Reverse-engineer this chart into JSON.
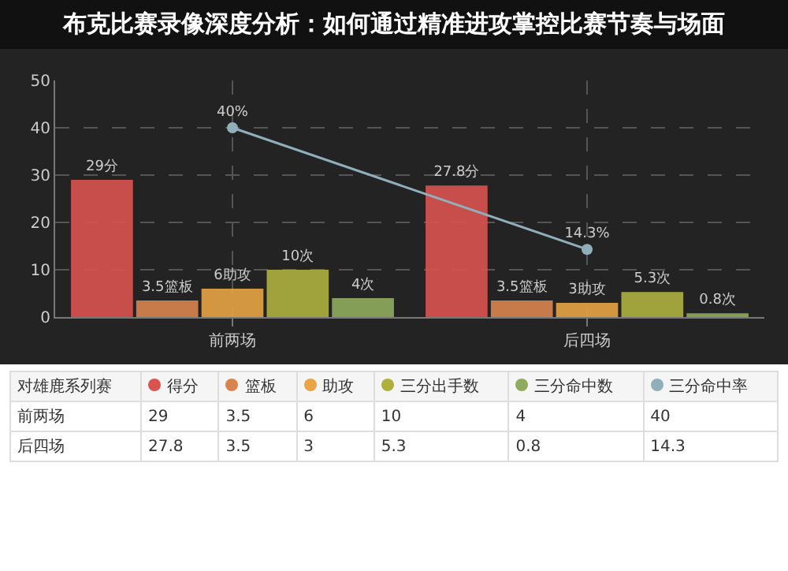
{
  "chart_data": [
    {
      "type": "bar",
      "title": "布克比赛录像深度分析：如何通过精准进攻掌控比赛节奏与场面",
      "categories": [
        "前两场",
        "后四场"
      ],
      "series": [
        {
          "color": "#d9534f",
          "values": [
            29,
            27.8
          ],
          "value_labels": [
            "29分",
            "27.8分"
          ]
        },
        {
          "color": "#d9844f",
          "values": [
            3.5,
            3.5
          ],
          "value_labels": [
            "3.5篮板",
            "3.5篮板"
          ]
        },
        {
          "color": "#e8a445",
          "values": [
            6,
            3
          ],
          "value_labels": [
            "6助攻",
            "3助攻"
          ]
        },
        {
          "color": "#aeb03e",
          "values": [
            10,
            5.3
          ],
          "value_labels": [
            "10次",
            "5.3次"
          ]
        },
        {
          "color": "#8fac5e",
          "values": [
            4,
            0.8
          ],
          "value_labels": [
            "4次",
            "0.8次"
          ]
        },
        {
          "type": "line",
          "color": "#8fb0bb",
          "values": [
            40,
            14.3
          ],
          "value_labels": [
            "40%",
            "14.3%"
          ]
        }
      ],
      "ylim": [
        0,
        50
      ],
      "yticks": [
        0,
        10,
        20,
        30,
        40,
        50
      ],
      "grid": true,
      "marker": "circle",
      "line_style": "solid"
    },
    {
      "type": "other",
      "legend_title": "对雄鹿系列赛",
      "categories": [
        "前两场",
        "后四场"
      ],
      "series": [
        {
          "name": "得分",
          "color": "#d9534f",
          "values": [
            29,
            27.8
          ]
        },
        {
          "name": "篮板",
          "color": "#d9844f",
          "values": [
            3.5,
            3.5
          ]
        },
        {
          "name": "助攻",
          "color": "#e8a445",
          "values": [
            6,
            3
          ]
        },
        {
          "name": "三分出手数",
          "color": "#aeb03e",
          "values": [
            10,
            5.3
          ]
        },
        {
          "name": "三分命中数",
          "color": "#8fac5e",
          "values": [
            4,
            0.8
          ]
        },
        {
          "name": "三分命中率",
          "color": "#8fb0bb",
          "values": [
            40,
            14.3
          ]
        }
      ],
      "legend": "top",
      "data_labels": true
    }
  ]
}
